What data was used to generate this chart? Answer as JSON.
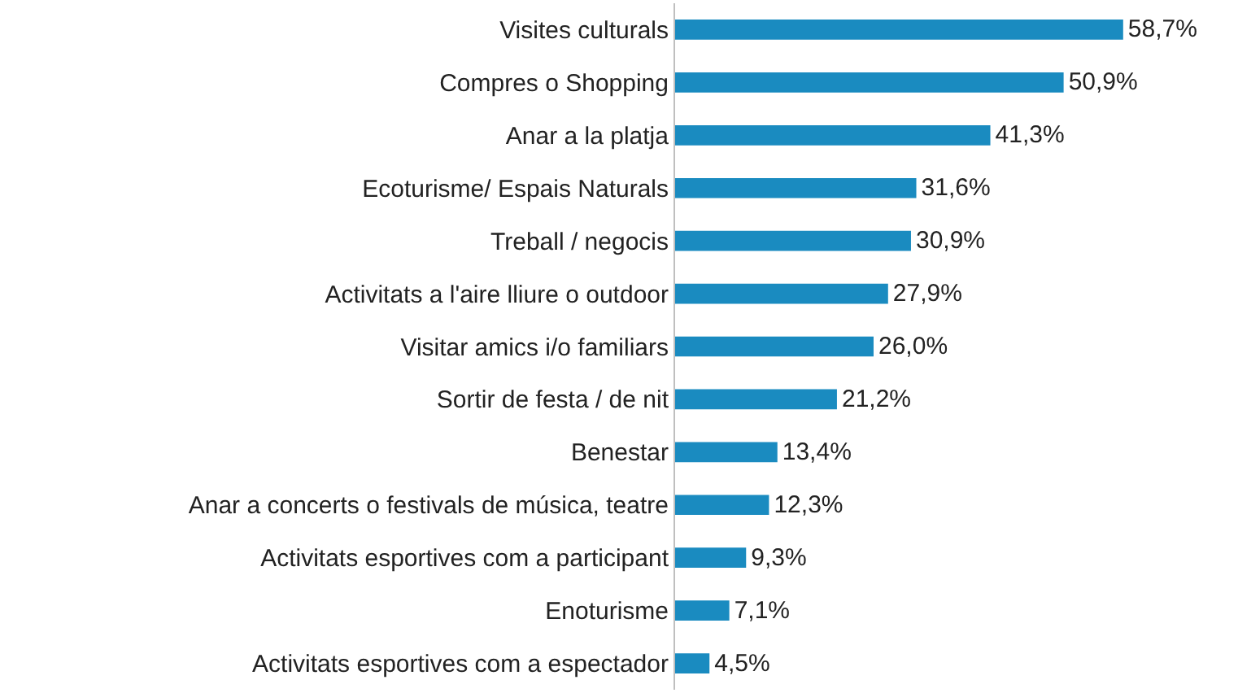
{
  "chart_data": {
    "type": "bar",
    "orientation": "horizontal",
    "categories": [
      "Visites culturals",
      "Compres o Shopping",
      "Anar a la platja",
      "Ecoturisme/ Espais Naturals",
      "Treball / negocis",
      "Activitats a l'aire lliure o outdoor",
      "Visitar amics i/o familiars",
      "Sortir de festa / de nit",
      "Benestar",
      "Anar a concerts o festivals de música, teatre",
      "Activitats esportives com a participant",
      "Enoturisme",
      "Activitats esportives com a espectador"
    ],
    "values": [
      58.7,
      50.9,
      41.3,
      31.6,
      30.9,
      27.9,
      26.0,
      21.2,
      13.4,
      12.3,
      9.3,
      7.1,
      4.5
    ],
    "value_labels": [
      "58,7%",
      "50,9%",
      "41,3%",
      "31,6%",
      "30,9%",
      "27,9%",
      "26,0%",
      "21,2%",
      "13,4%",
      "12,3%",
      "9,3%",
      "7,1%",
      "4,5%"
    ],
    "color": "#1a8bc0"
  }
}
